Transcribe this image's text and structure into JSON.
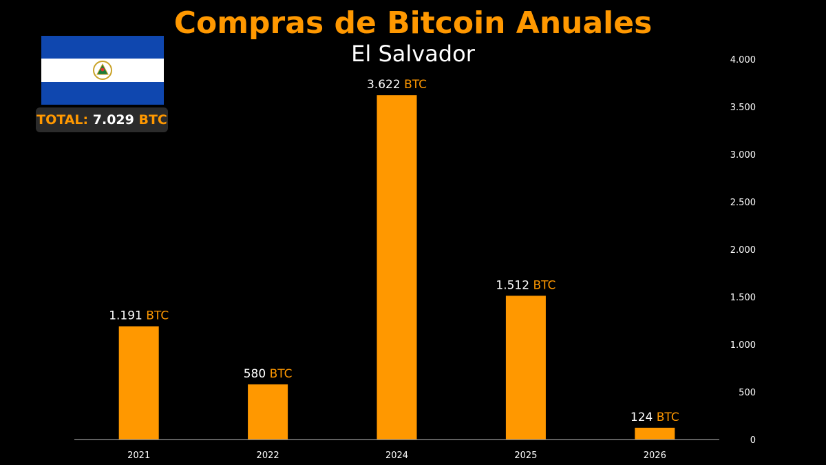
{
  "header": {
    "title": "Compras de Bitcoin Anuales",
    "subtitle": "El Salvador"
  },
  "flag": {
    "country": "El Salvador",
    "colors": {
      "blue": "#0f47af",
      "white": "#ffffff",
      "emblem": "#c9a227"
    }
  },
  "total": {
    "label": "TOTAL:",
    "value": "7.029",
    "unit": "BTC"
  },
  "colors": {
    "accent": "#ff9800",
    "background": "#000000",
    "text": "#ffffff",
    "axis": "#bfbfbf"
  },
  "chart_data": {
    "type": "bar",
    "categories": [
      "2021",
      "2022",
      "2024",
      "2025",
      "2026"
    ],
    "values": [
      1191,
      580,
      3622,
      1512,
      124
    ],
    "value_labels": [
      "1.191",
      "580",
      "3.622",
      "1.512",
      "124"
    ],
    "unit": "BTC",
    "ylim": [
      0,
      4000
    ],
    "yticks": [
      0,
      500,
      1000,
      1500,
      2000,
      2500,
      3000,
      3500,
      4000
    ],
    "ytick_labels": [
      "0",
      "500",
      "1.000",
      "1.500",
      "2.000",
      "2.500",
      "3.000",
      "3.500",
      "4.000"
    ],
    "y_axis_side": "right",
    "grid": false,
    "bar_color": "#ff9800",
    "title": "Compras de Bitcoin Anuales",
    "subtitle": "El Salvador",
    "xlabel": "",
    "ylabel": ""
  }
}
